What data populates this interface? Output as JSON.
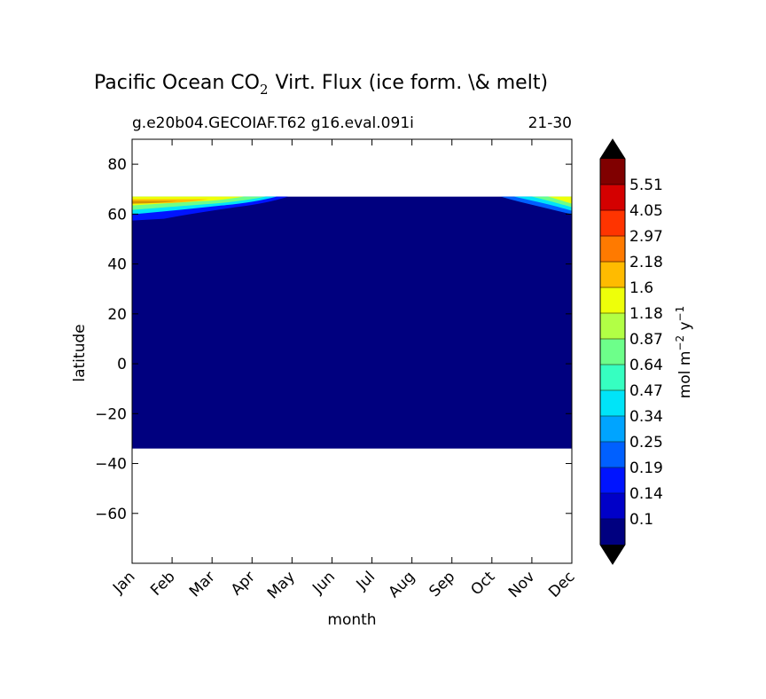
{
  "chart_data": {
    "type": "heatmap",
    "title": "Pacific Ocean CO",
    "title_sub": "2",
    "title_rest": "Virt. Flux (ice form. \\& melt)",
    "subtitle_left": "g.e20b04.GECOIAF.T62 g16.eval.091i",
    "subtitle_right": "21-30",
    "xlabel": "month",
    "ylabel": "latitude",
    "x_categories": [
      "Jan",
      "Feb",
      "Mar",
      "Apr",
      "May",
      "Jun",
      "Jul",
      "Aug",
      "Sep",
      "Oct",
      "Nov",
      "Dec"
    ],
    "ylim": [
      -80,
      90
    ],
    "yticks": [
      80,
      60,
      40,
      20,
      0,
      -20,
      -40,
      -60
    ],
    "data_lat_range": [
      -34,
      67
    ],
    "background_value_color": "#00007f",
    "colorbar": {
      "label_main": "mol m",
      "label_exp1": "−2",
      "label_mid": " y",
      "label_exp2": "−1",
      "levels": [
        "0.1",
        "0.14",
        "0.19",
        "0.25",
        "0.34",
        "0.47",
        "0.64",
        "0.87",
        "1.18",
        "1.6",
        "2.18",
        "2.97",
        "4.05",
        "5.51"
      ],
      "colors": [
        "#000080",
        "#0000c8",
        "#0014ff",
        "#0060ff",
        "#00a4ff",
        "#00e4f8",
        "#36ffc1",
        "#6dff8a",
        "#b2ff45",
        "#eeff09",
        "#ffbb00",
        "#ff7a00",
        "#ff3400",
        "#d40000",
        "#800000"
      ],
      "extend_low_color": "#000000",
      "extend_high_color": "#000000"
    },
    "features": [
      {
        "region": "Jan–Apr",
        "lat_range": [
          58,
          67
        ],
        "peak_value": "2.18",
        "note": "high flux along northern edge"
      },
      {
        "region": "Nov–Dec",
        "lat_range": [
          60,
          67
        ],
        "peak_value": "1.18"
      }
    ]
  }
}
